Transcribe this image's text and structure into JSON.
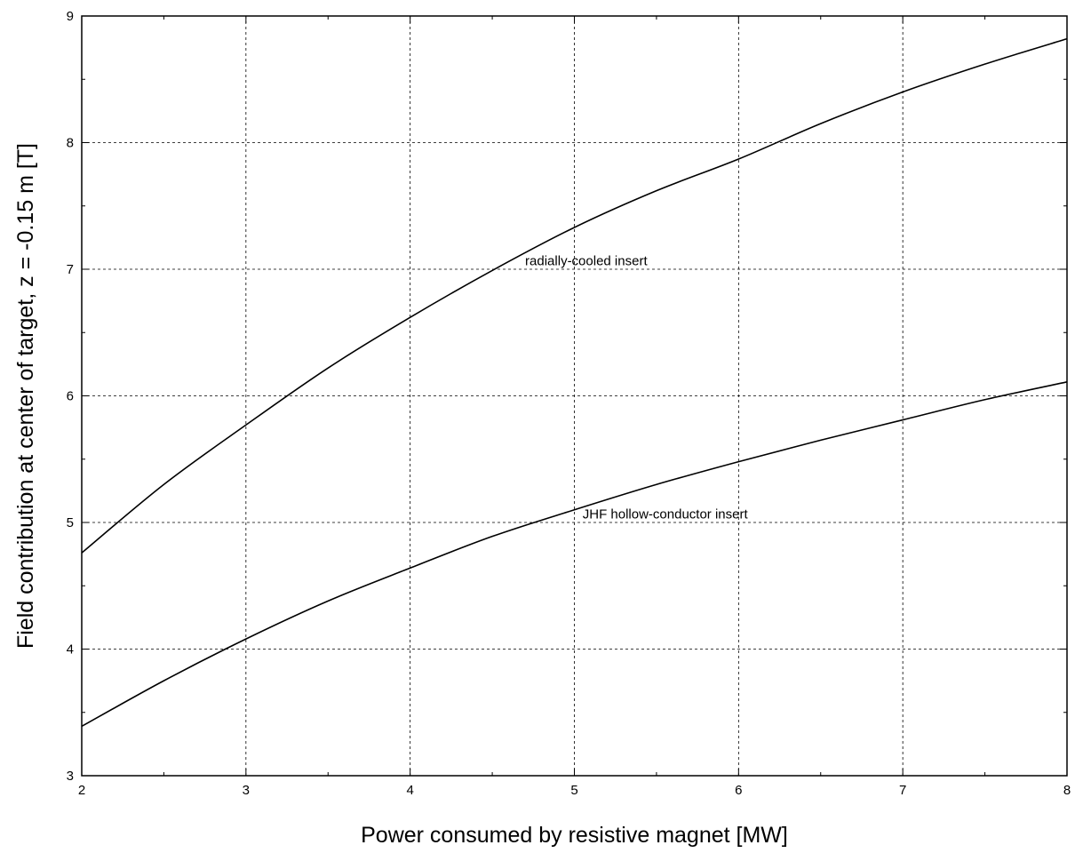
{
  "chart_data": {
    "type": "line",
    "title": "",
    "xlabel": "Power consumed by resistive magnet  [MW]",
    "ylabel": "Field contribution at center of target, z = -0.15 m  [T]",
    "xlim": [
      2,
      8
    ],
    "ylim": [
      3,
      9
    ],
    "x_ticks": [
      2,
      3,
      4,
      5,
      6,
      7,
      8
    ],
    "y_ticks": [
      3,
      4,
      5,
      6,
      7,
      8,
      9
    ],
    "grid": true,
    "series": [
      {
        "name": "radially-cooled insert",
        "x": [
          2,
          2.5,
          3,
          3.5,
          4,
          4.5,
          5,
          5.5,
          6,
          6.5,
          7,
          7.5,
          8
        ],
        "y": [
          4.76,
          5.3,
          5.77,
          6.22,
          6.62,
          6.99,
          7.33,
          7.62,
          7.87,
          8.15,
          8.4,
          8.62,
          8.82
        ]
      },
      {
        "name": "JHF hollow-conductor insert",
        "x": [
          2,
          2.5,
          3,
          3.5,
          4,
          4.5,
          5,
          5.5,
          6,
          6.5,
          7,
          7.5,
          8
        ],
        "y": [
          3.39,
          3.75,
          4.08,
          4.38,
          4.64,
          4.89,
          5.1,
          5.3,
          5.48,
          5.65,
          5.81,
          5.97,
          6.11
        ]
      }
    ],
    "annotations": [
      {
        "text": "radially-cooled insert",
        "x": 4.7,
        "y": 7.03
      },
      {
        "text": "JHF hollow-conductor insert",
        "x": 5.05,
        "y": 5.03
      }
    ]
  }
}
